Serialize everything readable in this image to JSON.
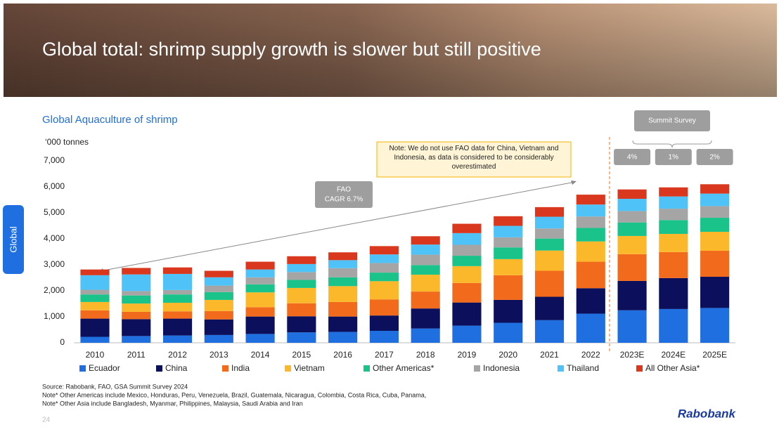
{
  "slide": {
    "title": "Global total: shrimp supply growth is slower but still positive",
    "side_tab": "Global",
    "source_notes": [
      "Source: Rabobank, FAO, GSA Summit Survey 2024",
      "Note* Other Americas include Mexico, Honduras, Peru, Venezuela, Brazil, Guatemala, Nicaragua, Colombia, Costa Rica, Cuba, Panama,",
      "Note* Other Asia include Bangladesh, Myanmar, Philippines, Malaysia, Saudi Arabia and Iran"
    ],
    "page_number": "24",
    "brand": "Rabobank"
  },
  "chart_data": {
    "type": "stacked_bar",
    "title": "Global Aquaculture of  shrimp",
    "y_label": "‘000 tonnes",
    "categories": [
      "2010",
      "2011",
      "2012",
      "2013",
      "2014",
      "2015",
      "2016",
      "2017",
      "2018",
      "2019",
      "2020",
      "2021",
      "2022",
      "2023E",
      "2024E",
      "2025E"
    ],
    "series": [
      {
        "name": "Ecuador",
        "color": "#1f6fe0",
        "values": [
          230,
          260,
          280,
          300,
          340,
          400,
          420,
          460,
          550,
          660,
          770,
          870,
          1120,
          1250,
          1300,
          1340
        ]
      },
      {
        "name": "China",
        "color": "#0b0f5c",
        "values": [
          700,
          650,
          650,
          600,
          670,
          620,
          590,
          590,
          770,
          890,
          880,
          900,
          980,
          1130,
          1190,
          1200
        ]
      },
      {
        "name": "India",
        "color": "#f26b1d",
        "values": [
          320,
          280,
          280,
          320,
          360,
          500,
          560,
          620,
          650,
          750,
          950,
          1000,
          1020,
          1030,
          1000,
          1000
        ]
      },
      {
        "name": "Vietnam",
        "color": "#fbb82a",
        "values": [
          320,
          320,
          330,
          430,
          570,
          590,
          610,
          700,
          650,
          650,
          620,
          780,
          780,
          700,
          700,
          730
        ]
      },
      {
        "name": "Other Americas*",
        "color": "#19c38a",
        "values": [
          290,
          310,
          320,
          300,
          310,
          310,
          340,
          330,
          370,
          400,
          450,
          460,
          520,
          520,
          530,
          540
        ]
      },
      {
        "name": "Indonesia",
        "color": "#a5a5a5",
        "values": [
          180,
          170,
          170,
          250,
          270,
          300,
          350,
          370,
          400,
          420,
          390,
          390,
          440,
          440,
          440,
          450
        ]
      },
      {
        "name": "Thailand",
        "color": "#4fc3f7",
        "values": [
          560,
          640,
          620,
          320,
          300,
          310,
          310,
          330,
          390,
          450,
          440,
          450,
          460,
          470,
          470,
          480
        ]
      },
      {
        "name": "All Other Asia*",
        "color": "#d9381e",
        "values": [
          220,
          250,
          250,
          250,
          300,
          300,
          300,
          320,
          320,
          360,
          370,
          370,
          380,
          360,
          350,
          360
        ]
      }
    ],
    "ylim": [
      0,
      7000
    ],
    "yticks": [
      0,
      {
        "value": 1000,
        "label": "1,000"
      },
      {
        "value": 2000,
        "label": "2,000"
      },
      {
        "value": 3000,
        "label": "3,000"
      },
      {
        "value": 4000,
        "label": "4,000"
      },
      {
        "value": 5000,
        "label": "5,000"
      },
      {
        "value": 6000,
        "label": "6,000"
      },
      {
        "value": 7000,
        "label": "7,000"
      }
    ],
    "grid": false,
    "annotations": {
      "note": "Note:  We do not use FAO data for China, Vietnam and Indonesia, as data is considered to be  considerably overestimated",
      "fao": [
        "FAO",
        "CAGR 6.7%"
      ],
      "summit_survey": "Summit Survey",
      "growth": [
        "4%",
        "1%",
        "2%"
      ]
    }
  }
}
